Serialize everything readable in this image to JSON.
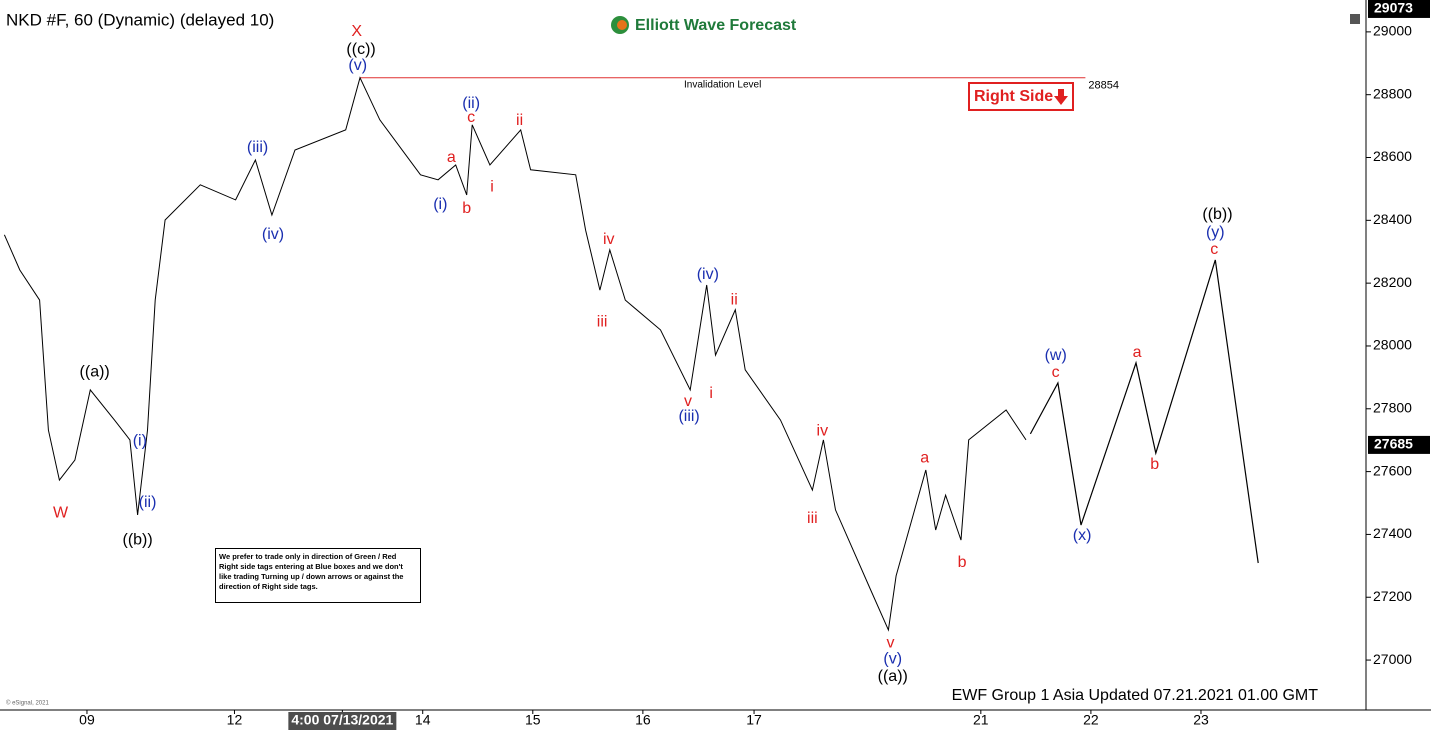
{
  "chart_data": {
    "type": "line",
    "title": "NKD #F, 60 (Dynamic) (delayed 10)",
    "logo": "Elliott Wave Forecast",
    "right_side": "Right Side",
    "footer": "EWF Group 1 Asia Updated 07.21.2021 01.00 GMT",
    "copyright": "© eSignal, 2021",
    "note": "We prefer to trade only in direction of Green / Red Right side tags entering at Blue boxes and we don't like trading Turning up / down arrows or against the direction of Right side tags.",
    "color": "#000000",
    "x": [
      -0.75,
      -0.61,
      -0.43,
      -0.35,
      -0.25,
      -0.11,
      0.03,
      0.25,
      0.39,
      0.46,
      0.55,
      0.62,
      0.71,
      1.03,
      1.35,
      1.53,
      1.68,
      1.89,
      2.35,
      2.48,
      2.66,
      3.03,
      3.19,
      3.35,
      3.45,
      3.5,
      3.66,
      3.94,
      4.03,
      4.44,
      4.53,
      4.66,
      4.75,
      4.89,
      5.21,
      5.48,
      5.63,
      5.71,
      5.89,
      5.98,
      6.3,
      6.59,
      6.69,
      6.8,
      7.12,
      7.28,
      7.35,
      7.62,
      7.71,
      7.8,
      7.94,
      8.01,
      8.35,
      8.53
    ],
    "values": [
      28354,
      28242,
      28146,
      27732,
      27573,
      27637,
      27860,
      27764,
      27701,
      27462,
      27732,
      28146,
      28401,
      28513,
      28465,
      28592,
      28417,
      28624,
      28688,
      28854,
      28720,
      28545,
      28529,
      28576,
      28481,
      28704,
      28576,
      28688,
      28561,
      28545,
      28369,
      28178,
      28306,
      28146,
      28051,
      27860,
      28194,
      27971,
      28115,
      27924,
      27764,
      27541,
      27701,
      27478,
      27223,
      27096,
      27268,
      27605,
      27414,
      27525,
      27382,
      27701,
      27796,
      27701
    ],
    "projection": {
      "x": [
        8.57,
        8.82,
        9.03,
        9.53,
        9.71,
        10.25,
        10.64
      ],
      "values": [
        27720,
        27882,
        27430,
        27946,
        27659,
        28274,
        27309
      ]
    },
    "xlim": [
      -0.79,
      11.61
    ],
    "ylim": [
      26841,
      29076
    ],
    "xticks": [
      {
        "value": 0,
        "label": "09"
      },
      {
        "value": 1.34,
        "label": "12"
      },
      {
        "value": 2.32,
        "label": "4:00 07/13/2021"
      },
      {
        "value": 3.05,
        "label": "14"
      },
      {
        "value": 4.05,
        "label": "15"
      },
      {
        "value": 5.05,
        "label": "16"
      },
      {
        "value": 6.06,
        "label": "17"
      },
      {
        "value": 8.12,
        "label": "21"
      },
      {
        "value": 9.12,
        "label": "22"
      },
      {
        "value": 10.12,
        "label": "23"
      }
    ],
    "yticks": [
      27000,
      27200,
      27400,
      27600,
      27800,
      28000,
      28200,
      28400,
      28600,
      28800,
      29000
    ],
    "invalidation": {
      "label": "Invalidation Level",
      "value": 28854,
      "x": [
        2.48,
        9.07
      ],
      "color": "#e03030"
    },
    "last_price": 27685,
    "top_price": 29073,
    "annotations": [
      {
        "text": "X",
        "x": 2.45,
        "y": 29000,
        "color": "#e02020"
      },
      {
        "text": "((c))",
        "x": 2.49,
        "y": 28943,
        "color": "#000000"
      },
      {
        "text": "(v)",
        "x": 2.46,
        "y": 28892,
        "color": "#1a2fb0"
      },
      {
        "text": "(iii)",
        "x": 1.55,
        "y": 28631,
        "color": "#1a2fb0"
      },
      {
        "text": "(iv)",
        "x": 1.69,
        "y": 28354,
        "color": "#1a2fb0"
      },
      {
        "text": "(i)",
        "x": 3.21,
        "y": 28449,
        "color": "#1a2fb0"
      },
      {
        "text": "a",
        "x": 3.31,
        "y": 28599,
        "color": "#e02020"
      },
      {
        "text": "b",
        "x": 3.45,
        "y": 28436,
        "color": "#e02020"
      },
      {
        "text": "(ii)",
        "x": 3.49,
        "y": 28771,
        "color": "#1a2fb0"
      },
      {
        "text": "c",
        "x": 3.49,
        "y": 28726,
        "color": "#e02020"
      },
      {
        "text": "ii",
        "x": 3.93,
        "y": 28717,
        "color": "#e02020"
      },
      {
        "text": "i",
        "x": 3.68,
        "y": 28506,
        "color": "#e02020"
      },
      {
        "text": "iv",
        "x": 4.74,
        "y": 28338,
        "color": "#e02020"
      },
      {
        "text": "iii",
        "x": 4.68,
        "y": 28076,
        "color": "#e02020"
      },
      {
        "text": "(iv)",
        "x": 5.64,
        "y": 28226,
        "color": "#1a2fb0"
      },
      {
        "text": "ii",
        "x": 5.88,
        "y": 28146,
        "color": "#e02020"
      },
      {
        "text": "v",
        "x": 5.46,
        "y": 27822,
        "color": "#e02020"
      },
      {
        "text": "i",
        "x": 5.67,
        "y": 27847,
        "color": "#e02020"
      },
      {
        "text": "(iii)",
        "x": 5.47,
        "y": 27774,
        "color": "#1a2fb0"
      },
      {
        "text": "iv",
        "x": 6.68,
        "y": 27729,
        "color": "#e02020"
      },
      {
        "text": "iii",
        "x": 6.59,
        "y": 27449,
        "color": "#e02020"
      },
      {
        "text": "v",
        "x": 7.3,
        "y": 27054,
        "color": "#e02020"
      },
      {
        "text": "(v)",
        "x": 7.32,
        "y": 27003,
        "color": "#1a2fb0"
      },
      {
        "text": "((a))",
        "x": 7.32,
        "y": 26946,
        "color": "#000000"
      },
      {
        "text": "a",
        "x": 7.61,
        "y": 27643,
        "color": "#e02020"
      },
      {
        "text": "b",
        "x": 7.95,
        "y": 27309,
        "color": "#e02020"
      },
      {
        "text": "(w)",
        "x": 8.8,
        "y": 27968,
        "color": "#1a2fb0"
      },
      {
        "text": "c",
        "x": 8.8,
        "y": 27914,
        "color": "#e02020"
      },
      {
        "text": "(x)",
        "x": 9.04,
        "y": 27395,
        "color": "#1a2fb0"
      },
      {
        "text": "a",
        "x": 9.54,
        "y": 27978,
        "color": "#e02020"
      },
      {
        "text": "b",
        "x": 9.7,
        "y": 27621,
        "color": "#e02020"
      },
      {
        "text": "((b))",
        "x": 10.27,
        "y": 28417,
        "color": "#000000"
      },
      {
        "text": "(y)",
        "x": 10.25,
        "y": 28360,
        "color": "#1a2fb0"
      },
      {
        "text": "c",
        "x": 10.24,
        "y": 28306,
        "color": "#e02020"
      },
      {
        "text": "((a))",
        "x": 0.07,
        "y": 27917,
        "color": "#000000"
      },
      {
        "text": "W",
        "x": -0.24,
        "y": 27468,
        "color": "#e02020"
      },
      {
        "text": "(i)",
        "x": 0.48,
        "y": 27697,
        "color": "#1a2fb0"
      },
      {
        "text": "(ii)",
        "x": 0.55,
        "y": 27500,
        "color": "#1a2fb0"
      },
      {
        "text": "((b))",
        "x": 0.46,
        "y": 27382,
        "color": "#000000"
      }
    ]
  }
}
